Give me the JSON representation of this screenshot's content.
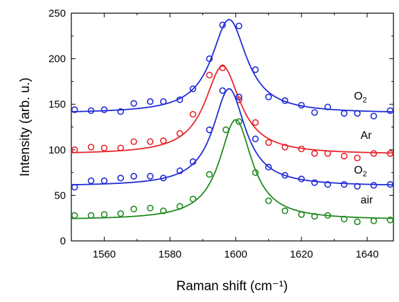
{
  "chart_data": {
    "type": "scatter",
    "title": "",
    "xlabel": "Raman shift (cm⁻¹)",
    "ylabel": "Intensity (arb. u.)",
    "xlim": [
      1550,
      1648
    ],
    "ylim": [
      0,
      250
    ],
    "x_ticks": [
      1560,
      1580,
      1600,
      1620,
      1640
    ],
    "y_ticks": [
      0,
      50,
      100,
      150,
      200,
      250
    ],
    "grid": false,
    "colors": {
      "blue": "#1f2bd6",
      "red": "#e8242b",
      "green": "#1f8a1f",
      "axis": "#000000"
    },
    "series": [
      {
        "label_text": "O",
        "label_sub": "2",
        "color": "#1f2bd6",
        "points_x": [
          1551,
          1556,
          1560,
          1565,
          1569,
          1574,
          1578,
          1583,
          1587,
          1592,
          1596,
          1601,
          1606,
          1610,
          1615,
          1620,
          1624,
          1628,
          1633,
          1637,
          1642,
          1647
        ],
        "points_y": [
          144,
          143,
          144,
          142,
          151,
          153,
          153,
          155,
          167,
          200,
          237,
          236,
          188,
          158,
          154,
          149,
          141,
          147,
          140,
          140,
          137,
          143
        ],
        "fit_base": 140,
        "fit_amp": 103,
        "fit_center": 1598,
        "fit_hwhm": 6.5
      },
      {
        "label_text": "Ar",
        "label_sub": "",
        "color": "#e8242b",
        "points_x": [
          1551,
          1556,
          1560,
          1565,
          1569,
          1574,
          1578,
          1583,
          1587,
          1592,
          1596,
          1601,
          1606,
          1610,
          1615,
          1620,
          1624,
          1628,
          1633,
          1637,
          1642,
          1647
        ],
        "points_y": [
          100,
          103,
          102,
          102,
          109,
          109,
          110,
          118,
          139,
          182,
          190,
          155,
          130,
          108,
          103,
          101,
          96,
          96,
          93,
          91,
          96,
          96
        ],
        "fit_base": 95,
        "fit_amp": 97,
        "fit_center": 1596,
        "fit_hwhm": 6.5
      },
      {
        "label_text": "O",
        "label_sub": "2",
        "color": "#1f2bd6",
        "points_x": [
          1551,
          1556,
          1560,
          1565,
          1569,
          1574,
          1578,
          1583,
          1587,
          1592,
          1596,
          1601,
          1606,
          1610,
          1615,
          1620,
          1624,
          1628,
          1633,
          1637,
          1642,
          1647
        ],
        "points_y": [
          59,
          66,
          66,
          69,
          71,
          71,
          69,
          77,
          87,
          122,
          165,
          158,
          112,
          81,
          72,
          68,
          64,
          62,
          62,
          60,
          61,
          62
        ],
        "fit_base": 60,
        "fit_amp": 107,
        "fit_center": 1598,
        "fit_hwhm": 6.0
      },
      {
        "label_text": "air",
        "label_sub": "",
        "color": "#1f8a1f",
        "points_x": [
          1551,
          1556,
          1560,
          1565,
          1569,
          1574,
          1578,
          1583,
          1587,
          1592,
          1597,
          1601,
          1606,
          1610,
          1615,
          1620,
          1624,
          1628,
          1633,
          1637,
          1642,
          1647
        ],
        "points_y": [
          28,
          28,
          29,
          30,
          35,
          36,
          33,
          38,
          46,
          73,
          122,
          131,
          75,
          44,
          33,
          29,
          27,
          28,
          24,
          21,
          22,
          23
        ],
        "fit_base": 23,
        "fit_amp": 110,
        "fit_center": 1600,
        "fit_hwhm": 6.0
      }
    ]
  }
}
